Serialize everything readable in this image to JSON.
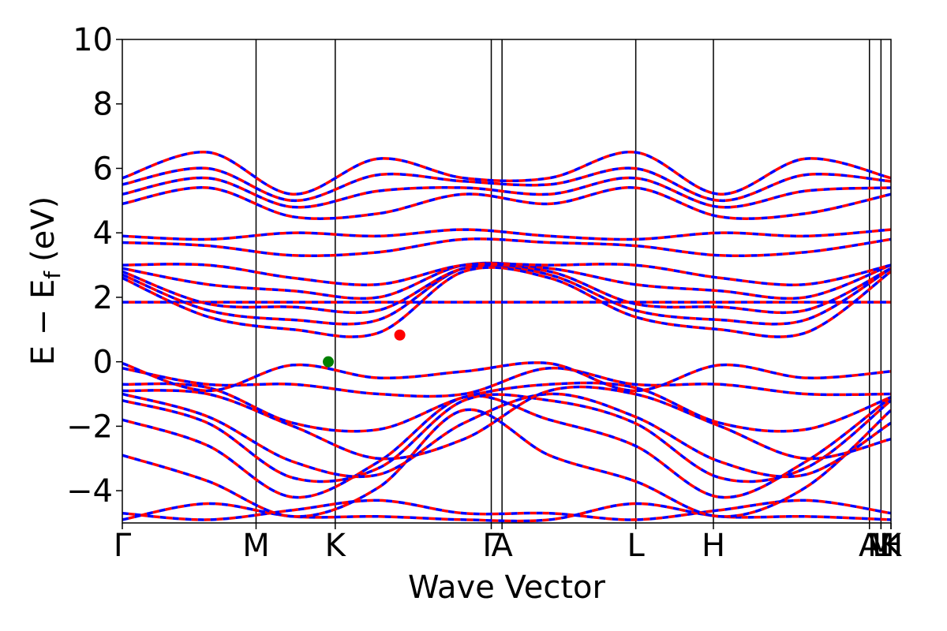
{
  "chart_data": {
    "type": "line",
    "title": "",
    "xlabel": "Wave Vector",
    "ylabel_main": "E − E",
    "ylabel_sub": "f",
    "ylabel_unit": "(eV)",
    "ylim": [
      -5,
      10
    ],
    "yticks": [
      -4,
      -2,
      0,
      2,
      4,
      6,
      8,
      10
    ],
    "ytick_labels": [
      "−4",
      "−2",
      "0",
      "2",
      "4",
      "6",
      "8",
      "10"
    ],
    "xlim": [
      0,
      1
    ],
    "kpoints": [
      {
        "label": "Γ",
        "x": 0.0
      },
      {
        "label": "M",
        "x": 0.174
      },
      {
        "label": "K",
        "x": 0.277
      },
      {
        "label": "Γ",
        "x": 0.48
      },
      {
        "label": "A",
        "x": 0.494
      },
      {
        "label": "L",
        "x": 0.668
      },
      {
        "label": "H",
        "x": 0.769
      },
      {
        "label": "A",
        "x": 0.972
      },
      {
        "label": "L",
        "x": 0.987
      },
      {
        "label": "M",
        "x": 0.987
      },
      {
        "label": "H",
        "x": 1.0
      },
      {
        "label": "K",
        "x": 1.0
      }
    ],
    "series": [
      {
        "color": "#0000ff",
        "style": "dashed"
      },
      {
        "color": "#ff0000",
        "style": "dashed"
      }
    ],
    "markers": [
      {
        "kind": "VBM",
        "x": 0.268,
        "y": 0.0,
        "color": "#008000"
      },
      {
        "kind": "CBM",
        "x": 0.361,
        "y": 0.83,
        "color": "#ff0000"
      }
    ],
    "bands": [
      {
        "y": [
          -4.7,
          -4.9,
          -4.6,
          -4.3,
          -4.7,
          -4.7,
          -4.9,
          -4.6,
          -4.3,
          -4.7
        ]
      },
      {
        "y": [
          -4.9,
          -4.4,
          -4.8,
          -4.8,
          -4.9,
          -4.9,
          -4.4,
          -4.8,
          -4.8,
          -4.9
        ]
      },
      {
        "y": [
          -2.9,
          -3.7,
          -4.8,
          -3.9,
          -1.5,
          -2.9,
          -3.7,
          -4.8,
          -3.9,
          -1.5
        ]
      },
      {
        "y": [
          -1.8,
          -2.6,
          -4.2,
          -3.1,
          -1.1,
          -1.8,
          -2.6,
          -4.2,
          -3.1,
          -1.1
        ]
      },
      {
        "y": [
          -1.2,
          -1.9,
          -3.6,
          -3.3,
          -1.2,
          -1.2,
          -1.9,
          -3.6,
          -3.3,
          -1.2
        ]
      },
      {
        "y": [
          -1.0,
          -1.7,
          -3.1,
          -3.5,
          -1.9,
          -1.0,
          -1.7,
          -3.1,
          -3.5,
          -1.9
        ]
      },
      {
        "y": [
          -0.9,
          -1.0,
          -2.0,
          -3.0,
          -2.4,
          -0.9,
          -1.0,
          -2.0,
          -3.0,
          -2.4
        ]
      },
      {
        "y": [
          -0.7,
          -0.8,
          -1.9,
          -2.1,
          -1.1,
          -0.7,
          -0.8,
          -1.9,
          -2.1,
          -1.1
        ]
      },
      {
        "y": [
          -0.2,
          -0.7,
          -0.7,
          -1.0,
          -1.0,
          -0.2,
          -0.7,
          -0.7,
          -1.0,
          -1.0
        ]
      },
      {
        "y": [
          -0.05,
          -0.9,
          -0.1,
          -0.5,
          -0.3,
          -0.05,
          -0.9,
          -0.1,
          -0.5,
          -0.3
        ]
      },
      {
        "y": [
          1.85,
          1.85,
          1.85,
          1.85,
          1.85,
          1.85,
          1.85,
          1.85,
          1.85,
          1.85
        ]
      },
      {
        "y": [
          2.6,
          1.4,
          1.0,
          0.9,
          2.8,
          2.6,
          1.4,
          1.0,
          0.9,
          2.8
        ]
      },
      {
        "y": [
          2.7,
          1.6,
          1.3,
          1.3,
          2.9,
          2.7,
          1.6,
          1.3,
          1.3,
          2.9
        ]
      },
      {
        "y": [
          2.8,
          1.8,
          1.7,
          1.6,
          2.9,
          2.8,
          1.8,
          1.7,
          1.6,
          2.9
        ]
      },
      {
        "y": [
          2.9,
          2.4,
          2.2,
          2.0,
          3.0,
          2.9,
          2.4,
          2.2,
          2.0,
          3.0
        ]
      },
      {
        "y": [
          3.0,
          3.0,
          2.6,
          2.4,
          3.0,
          3.0,
          3.0,
          2.6,
          2.4,
          3.0
        ]
      },
      {
        "y": [
          3.7,
          3.6,
          3.3,
          3.4,
          3.8,
          3.7,
          3.6,
          3.3,
          3.4,
          3.8
        ]
      },
      {
        "y": [
          3.9,
          3.8,
          4.0,
          3.9,
          4.1,
          3.9,
          3.8,
          4.0,
          3.9,
          4.1
        ]
      },
      {
        "y": [
          4.9,
          5.4,
          4.5,
          4.6,
          5.2,
          4.9,
          5.4,
          4.5,
          4.6,
          5.2
        ]
      },
      {
        "y": [
          5.2,
          5.7,
          4.8,
          5.3,
          5.4,
          5.2,
          5.7,
          4.8,
          5.3,
          5.4
        ]
      },
      {
        "y": [
          5.5,
          6.0,
          5.0,
          5.8,
          5.6,
          5.5,
          6.0,
          5.0,
          5.8,
          5.6
        ]
      },
      {
        "y": [
          5.7,
          6.5,
          5.2,
          6.3,
          5.7,
          5.7,
          6.5,
          5.2,
          6.3,
          5.7
        ]
      }
    ]
  }
}
